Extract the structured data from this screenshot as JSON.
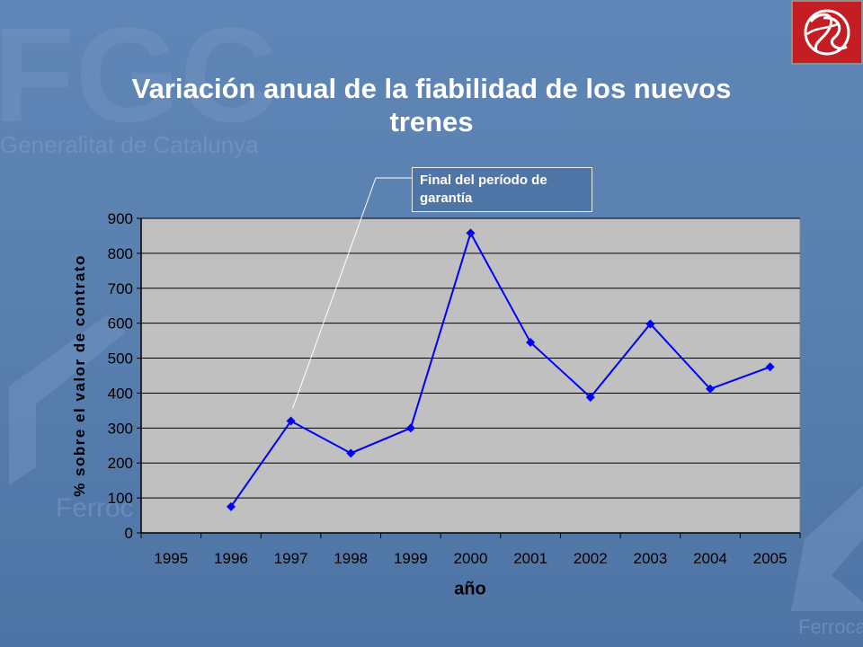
{
  "title": "Variación anual de la fiabilidad de los nuevos trenes",
  "watermark": {
    "logo_text": "FGC",
    "org_text": "Generalitat de Catalunya",
    "partial_words": [
      "Ferroc",
      "Ferroca"
    ]
  },
  "logo": {
    "description": "red square emblem with white calligraphic monogram"
  },
  "callout": {
    "text": "Final del período de garantía",
    "points_to_year": "1997"
  },
  "chart_data": {
    "type": "line",
    "categories": [
      "1995",
      "1996",
      "1997",
      "1998",
      "1999",
      "2000",
      "2001",
      "2002",
      "2003",
      "2004",
      "2005"
    ],
    "series": [
      {
        "values": [
          null,
          75,
          320,
          228,
          300,
          858,
          545,
          388,
          598,
          412,
          475
        ]
      }
    ],
    "xlabel": "año",
    "ylabel": "% sobre el valor de contrato",
    "ylim": [
      0,
      900
    ],
    "yticks": [
      0,
      100,
      200,
      300,
      400,
      500,
      600,
      700,
      800,
      900
    ],
    "grid": true,
    "marker": "diamond",
    "colors": {
      "line": "#0000ff",
      "plot_bg": "#c0c0c0",
      "grid": "#000000"
    }
  }
}
